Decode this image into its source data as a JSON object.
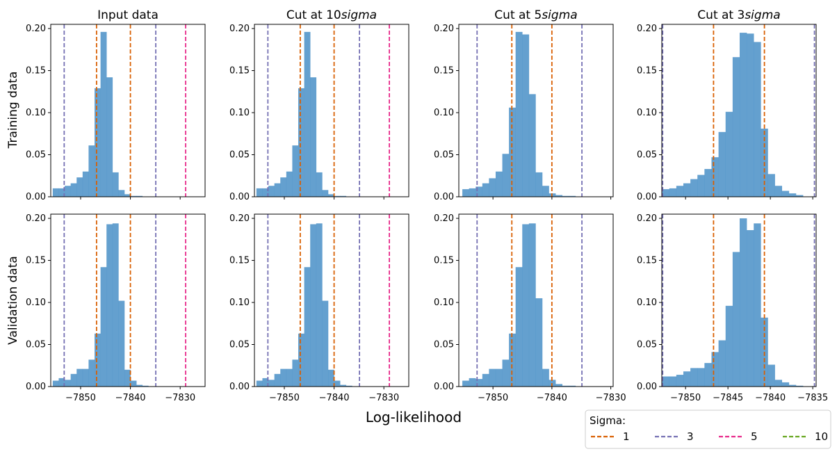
{
  "figure": {
    "xlabel": "Log-likelihood",
    "legend": {
      "title": "Sigma:",
      "entries": [
        {
          "label": "1",
          "color": "#d95f02"
        },
        {
          "label": "3",
          "color": "#7570b3"
        },
        {
          "label": "5",
          "color": "#e7298a"
        },
        {
          "label": "10",
          "color": "#66a61e"
        }
      ]
    },
    "bar_color": "#4f93c8"
  },
  "chart_data": [
    {
      "type": "bar",
      "row": "Training data",
      "title": "Input data",
      "xlim": [
        -7856,
        -7825
      ],
      "ylim": [
        0,
        0.205
      ],
      "xticks": [
        -7850,
        -7840,
        -7830
      ],
      "show_xticklabels": false,
      "yticks": [
        0.0,
        0.05,
        0.1,
        0.15,
        0.2
      ],
      "bins": {
        "start": -7855.6,
        "width": 1.2
      },
      "values": [
        0.01,
        0.01,
        0.013,
        0.016,
        0.023,
        0.03,
        0.061,
        0.129,
        0.196,
        0.142,
        0.029,
        0.008,
        0.003,
        0.001,
        0.001
      ],
      "vlines": [
        {
          "sigma": "1",
          "x": -7846.8
        },
        {
          "sigma": "1",
          "x": -7840.0
        },
        {
          "sigma": "3",
          "x": -7853.3
        },
        {
          "sigma": "3",
          "x": -7834.9
        },
        {
          "sigma": "5",
          "x": -7828.9
        }
      ]
    },
    {
      "type": "bar",
      "row": "Training data",
      "title": "Cut at 10$sigma$",
      "xlim": [
        -7856,
        -7825
      ],
      "ylim": [
        0,
        0.205
      ],
      "xticks": [
        -7850,
        -7840,
        -7830
      ],
      "show_xticklabels": false,
      "yticks": [
        0.0,
        0.05,
        0.1,
        0.15,
        0.2
      ],
      "bins": {
        "start": -7855.6,
        "width": 1.2
      },
      "values": [
        0.01,
        0.01,
        0.013,
        0.016,
        0.023,
        0.03,
        0.061,
        0.129,
        0.196,
        0.142,
        0.029,
        0.008,
        0.003,
        0.001,
        0.001
      ],
      "vlines": [
        {
          "sigma": "1",
          "x": -7846.8
        },
        {
          "sigma": "1",
          "x": -7840.0
        },
        {
          "sigma": "3",
          "x": -7853.3
        },
        {
          "sigma": "3",
          "x": -7834.9
        },
        {
          "sigma": "5",
          "x": -7828.9
        }
      ]
    },
    {
      "type": "bar",
      "row": "Training data",
      "title": "Cut at 5$sigma$",
      "xlim": [
        -7855.8,
        -7829.6
      ],
      "ylim": [
        0,
        0.205
      ],
      "xticks": [
        -7850,
        -7840,
        -7830
      ],
      "show_xticklabels": false,
      "yticks": [
        0.0,
        0.05,
        0.1,
        0.15,
        0.2
      ],
      "bins": {
        "start": -7855.2,
        "width": 1.13
      },
      "values": [
        0.009,
        0.01,
        0.012,
        0.016,
        0.022,
        0.03,
        0.051,
        0.106,
        0.196,
        0.193,
        0.122,
        0.029,
        0.013,
        0.004,
        0.002,
        0.001,
        0.001
      ],
      "vlines": [
        {
          "sigma": "1",
          "x": -7846.8
        },
        {
          "sigma": "1",
          "x": -7840.0
        },
        {
          "sigma": "3",
          "x": -7852.7
        },
        {
          "sigma": "3",
          "x": -7834.9
        }
      ]
    },
    {
      "type": "bar",
      "row": "Training data",
      "title": "Cut at 3$sigma$",
      "xlim": [
        -7852.8,
        -7834.6
      ],
      "ylim": [
        0,
        0.205
      ],
      "xticks": [
        -7850,
        -7845,
        -7840,
        -7835
      ],
      "show_xticklabels": false,
      "yticks": [
        0.0,
        0.05,
        0.1,
        0.15,
        0.2
      ],
      "bins": {
        "start": -7852.75,
        "width": 0.83
      },
      "values": [
        0.009,
        0.01,
        0.013,
        0.016,
        0.021,
        0.026,
        0.033,
        0.047,
        0.077,
        0.101,
        0.166,
        0.195,
        0.194,
        0.184,
        0.081,
        0.027,
        0.013,
        0.007,
        0.004,
        0.002
      ],
      "vlines": [
        {
          "sigma": "1",
          "x": -7846.7
        },
        {
          "sigma": "1",
          "x": -7840.7
        },
        {
          "sigma": "3",
          "x": -7852.7
        },
        {
          "sigma": "3",
          "x": -7834.8
        }
      ]
    },
    {
      "type": "bar",
      "row": "Validation data",
      "title": "",
      "xlim": [
        -7856,
        -7825
      ],
      "ylim": [
        0,
        0.205
      ],
      "xticks": [
        -7850,
        -7840,
        -7830
      ],
      "show_xticklabels": true,
      "yticks": [
        0.0,
        0.05,
        0.1,
        0.15,
        0.2
      ],
      "bins": {
        "start": -7855.6,
        "width": 1.2
      },
      "values": [
        0.007,
        0.01,
        0.008,
        0.015,
        0.021,
        0.021,
        0.032,
        0.063,
        0.142,
        0.193,
        0.194,
        0.102,
        0.02,
        0.007,
        0.002,
        0.001
      ],
      "vlines": [
        {
          "sigma": "1",
          "x": -7846.8
        },
        {
          "sigma": "1",
          "x": -7840.0
        },
        {
          "sigma": "3",
          "x": -7853.3
        },
        {
          "sigma": "3",
          "x": -7834.9
        },
        {
          "sigma": "5",
          "x": -7828.9
        }
      ]
    },
    {
      "type": "bar",
      "row": "Validation data",
      "title": "",
      "xlim": [
        -7856,
        -7825
      ],
      "ylim": [
        0,
        0.205
      ],
      "xticks": [
        -7850,
        -7840,
        -7830
      ],
      "show_xticklabels": true,
      "yticks": [
        0.0,
        0.05,
        0.1,
        0.15,
        0.2
      ],
      "bins": {
        "start": -7855.6,
        "width": 1.2
      },
      "values": [
        0.007,
        0.01,
        0.008,
        0.015,
        0.021,
        0.021,
        0.032,
        0.063,
        0.142,
        0.193,
        0.194,
        0.102,
        0.02,
        0.007,
        0.002,
        0.001
      ],
      "vlines": [
        {
          "sigma": "1",
          "x": -7846.8
        },
        {
          "sigma": "1",
          "x": -7840.0
        },
        {
          "sigma": "3",
          "x": -7853.3
        },
        {
          "sigma": "3",
          "x": -7834.9
        },
        {
          "sigma": "5",
          "x": -7828.9
        }
      ]
    },
    {
      "type": "bar",
      "row": "Validation data",
      "title": "",
      "xlim": [
        -7855.8,
        -7829.6
      ],
      "ylim": [
        0,
        0.205
      ],
      "xticks": [
        -7850,
        -7840,
        -7830
      ],
      "show_xticklabels": true,
      "yticks": [
        0.0,
        0.05,
        0.1,
        0.15,
        0.2
      ],
      "bins": {
        "start": -7855.2,
        "width": 1.13
      },
      "values": [
        0.007,
        0.01,
        0.009,
        0.015,
        0.021,
        0.021,
        0.032,
        0.063,
        0.142,
        0.193,
        0.194,
        0.105,
        0.021,
        0.008,
        0.003,
        0.001,
        0.001
      ],
      "vlines": [
        {
          "sigma": "1",
          "x": -7846.8
        },
        {
          "sigma": "1",
          "x": -7840.0
        },
        {
          "sigma": "3",
          "x": -7852.7
        },
        {
          "sigma": "3",
          "x": -7834.9
        }
      ]
    },
    {
      "type": "bar",
      "row": "Validation data",
      "title": "",
      "xlim": [
        -7852.8,
        -7834.6
      ],
      "ylim": [
        0,
        0.205
      ],
      "xticks": [
        -7850,
        -7845,
        -7840,
        -7835
      ],
      "show_xticklabels": true,
      "yticks": [
        0.0,
        0.05,
        0.1,
        0.15,
        0.2
      ],
      "bins": {
        "start": -7852.75,
        "width": 0.83
      },
      "values": [
        0.012,
        0.012,
        0.014,
        0.018,
        0.022,
        0.022,
        0.028,
        0.041,
        0.055,
        0.096,
        0.16,
        0.2,
        0.186,
        0.194,
        0.082,
        0.026,
        0.008,
        0.005,
        0.002,
        0.001
      ],
      "vlines": [
        {
          "sigma": "1",
          "x": -7846.7
        },
        {
          "sigma": "1",
          "x": -7840.7
        },
        {
          "sigma": "3",
          "x": -7852.7
        },
        {
          "sigma": "3",
          "x": -7834.8
        }
      ]
    }
  ]
}
